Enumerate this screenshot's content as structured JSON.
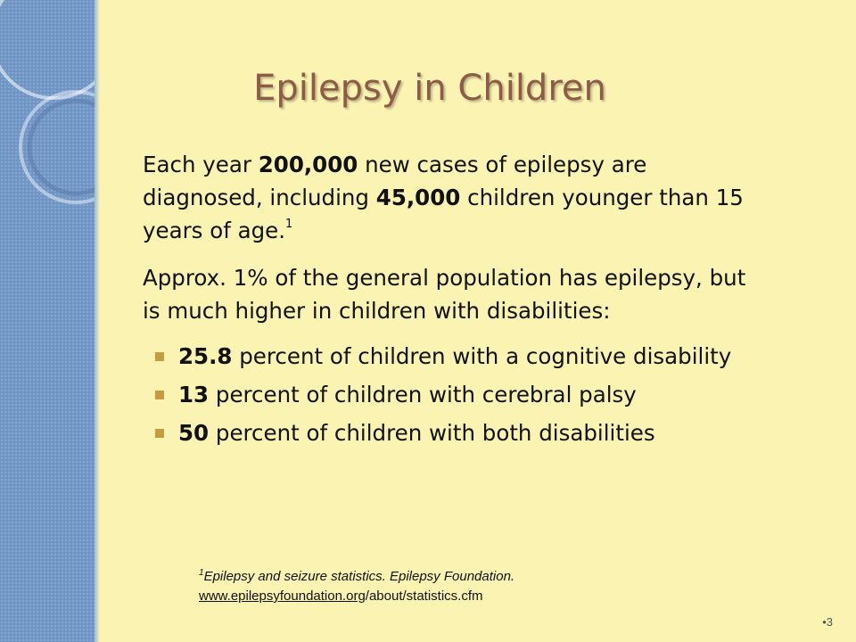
{
  "title": "Epilepsy in Children",
  "paragraphs": [
    {
      "runs": [
        {
          "text": "Each year ",
          "bold": false
        },
        {
          "text": "200,000",
          "bold": true
        },
        {
          "text": " new cases of epilepsy are diagnosed, including ",
          "bold": false
        },
        {
          "text": "45,000",
          "bold": true
        },
        {
          "text": " children younger than 15 years of age.",
          "bold": false
        }
      ],
      "note": "1"
    },
    {
      "runs": [
        {
          "text": "Approx. 1% of the general population has epilepsy, but is much higher in children with disabilities:",
          "bold": false
        }
      ]
    }
  ],
  "bullets": [
    {
      "bold": "25.8",
      "text": " percent of children with a cognitive disability"
    },
    {
      "bold": "13",
      "text": " percent of children with cerebral palsy"
    },
    {
      "bold": "50",
      "text": " percent of children with both disabilities"
    }
  ],
  "footnote": {
    "mark": "1",
    "text": "Epilepsy and seizure statistics. Epilepsy Foundation.",
    "link": "www.epilepsyfoundation.org",
    "link_rest": "/about/statistics.cfm"
  },
  "page_number": "3"
}
